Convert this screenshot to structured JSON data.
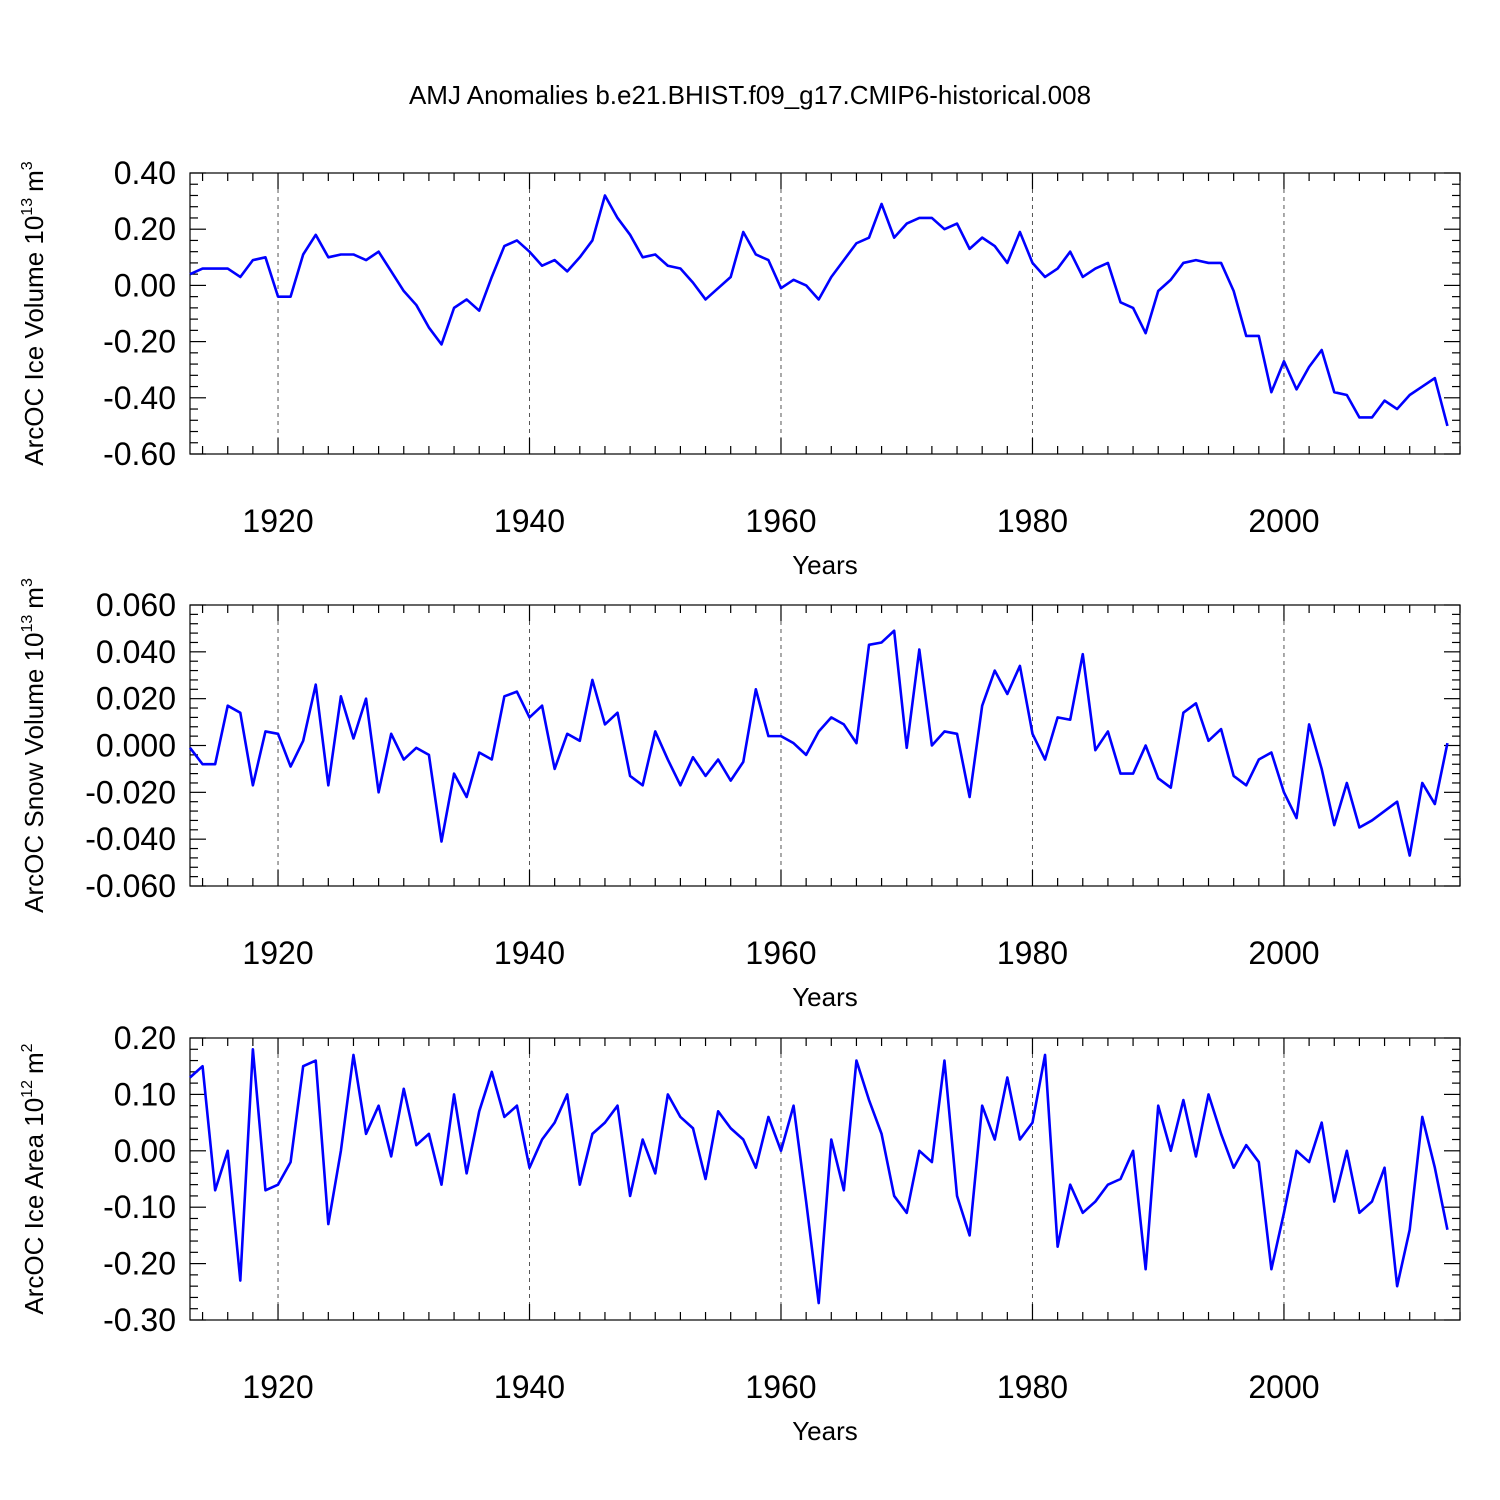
{
  "figure_title": "AMJ Anomalies b.e21.BHIST.f09_g17.CMIP6-historical.008",
  "chart_data": [
    {
      "type": "line",
      "ylabel": "ArcOC Ice Volume 10",
      "ylabel_exp": "13",
      "ylabel_unit": "m",
      "ylabel_unit_exp": "3",
      "xlabel": "Years",
      "xlim": [
        1913,
        2014
      ],
      "ylim": [
        -0.6,
        0.4
      ],
      "yticks": [
        -0.6,
        -0.4,
        -0.2,
        0.0,
        0.2,
        0.4
      ],
      "ytick_labels": [
        "-0.60",
        "-0.40",
        "-0.20",
        "0.00",
        "0.20",
        "0.40"
      ],
      "xticks": [
        1920,
        1940,
        1960,
        1980,
        2000
      ],
      "xtick_labels": [
        "1920",
        "1940",
        "1960",
        "1980",
        "2000"
      ],
      "grid": "vertical dashed at major x ticks",
      "series": [
        {
          "name": "ArcOC Ice Volume",
          "color": "#0000ff",
          "x_start": 1913,
          "values": [
            0.04,
            0.06,
            0.06,
            0.06,
            0.03,
            0.09,
            0.1,
            -0.04,
            -0.04,
            0.11,
            0.18,
            0.1,
            0.11,
            0.11,
            0.09,
            0.12,
            0.05,
            -0.02,
            -0.07,
            -0.15,
            -0.21,
            -0.08,
            -0.05,
            -0.09,
            0.03,
            0.14,
            0.16,
            0.12,
            0.07,
            0.09,
            0.05,
            0.1,
            0.16,
            0.32,
            0.24,
            0.18,
            0.1,
            0.11,
            0.07,
            0.06,
            0.01,
            -0.05,
            -0.01,
            0.03,
            0.19,
            0.11,
            0.09,
            -0.01,
            0.02,
            0.0,
            -0.05,
            0.03,
            0.09,
            0.15,
            0.17,
            0.29,
            0.17,
            0.22,
            0.24,
            0.24,
            0.2,
            0.22,
            0.13,
            0.17,
            0.14,
            0.08,
            0.19,
            0.08,
            0.03,
            0.06,
            0.12,
            0.03,
            0.06,
            0.08,
            -0.06,
            -0.08,
            -0.17,
            -0.02,
            0.02,
            0.08,
            0.09,
            0.08,
            0.08,
            -0.02,
            -0.18,
            -0.18,
            -0.38,
            -0.27,
            -0.37,
            -0.29,
            -0.23,
            -0.38,
            -0.39,
            -0.47,
            -0.47,
            -0.41,
            -0.44,
            -0.39,
            -0.36,
            -0.33,
            -0.5
          ]
        }
      ]
    },
    {
      "type": "line",
      "ylabel": "ArcOC Snow Volume 10",
      "ylabel_exp": "13",
      "ylabel_unit": "m",
      "ylabel_unit_exp": "3",
      "xlabel": "Years",
      "xlim": [
        1913,
        2014
      ],
      "ylim": [
        -0.06,
        0.06
      ],
      "yticks": [
        -0.06,
        -0.04,
        -0.02,
        0.0,
        0.02,
        0.04,
        0.06
      ],
      "ytick_labels": [
        "-0.060",
        "-0.040",
        "-0.020",
        "0.000",
        "0.020",
        "0.040",
        "0.060"
      ],
      "xticks": [
        1920,
        1940,
        1960,
        1980,
        2000
      ],
      "xtick_labels": [
        "1920",
        "1940",
        "1960",
        "1980",
        "2000"
      ],
      "grid": "vertical dashed at major x ticks",
      "series": [
        {
          "name": "ArcOC Snow Volume",
          "color": "#0000ff",
          "x_start": 1913,
          "values": [
            -0.001,
            -0.008,
            -0.008,
            0.017,
            0.014,
            -0.017,
            0.006,
            0.005,
            -0.009,
            0.002,
            0.026,
            -0.017,
            0.021,
            0.003,
            0.02,
            -0.02,
            0.005,
            -0.006,
            -0.001,
            -0.004,
            -0.041,
            -0.012,
            -0.022,
            -0.003,
            -0.006,
            0.021,
            0.023,
            0.012,
            0.017,
            -0.01,
            0.005,
            0.002,
            0.028,
            0.009,
            0.014,
            -0.013,
            -0.017,
            0.006,
            -0.006,
            -0.017,
            -0.005,
            -0.013,
            -0.006,
            -0.015,
            -0.007,
            0.024,
            0.004,
            0.004,
            0.001,
            -0.004,
            0.006,
            0.012,
            0.009,
            0.001,
            0.043,
            0.044,
            0.049,
            -0.001,
            0.041,
            0.0,
            0.006,
            0.005,
            -0.022,
            0.017,
            0.032,
            0.022,
            0.034,
            0.005,
            -0.006,
            0.012,
            0.011,
            0.039,
            -0.002,
            0.006,
            -0.012,
            -0.012,
            0.0,
            -0.014,
            -0.018,
            0.014,
            0.018,
            0.002,
            0.007,
            -0.013,
            -0.017,
            -0.006,
            -0.003,
            -0.02,
            -0.031,
            0.009,
            -0.01,
            -0.034,
            -0.016,
            -0.035,
            -0.032,
            -0.028,
            -0.024,
            -0.047,
            -0.016,
            -0.025,
            0.001
          ]
        }
      ]
    },
    {
      "type": "line",
      "ylabel": "ArcOC Ice Area 10",
      "ylabel_exp": "12",
      "ylabel_unit": "m",
      "ylabel_unit_exp": "2",
      "xlabel": "Years",
      "xlim": [
        1913,
        2014
      ],
      "ylim": [
        -0.3,
        0.2
      ],
      "yticks": [
        -0.3,
        -0.2,
        -0.1,
        0.0,
        0.1,
        0.2
      ],
      "ytick_labels": [
        "-0.30",
        "-0.20",
        "-0.10",
        "0.00",
        "0.10",
        "0.20"
      ],
      "xticks": [
        1920,
        1940,
        1960,
        1980,
        2000
      ],
      "xtick_labels": [
        "1920",
        "1940",
        "1960",
        "1980",
        "2000"
      ],
      "grid": "vertical dashed at major x ticks",
      "series": [
        {
          "name": "ArcOC Ice Area",
          "color": "#0000ff",
          "x_start": 1913,
          "values": [
            0.13,
            0.15,
            -0.07,
            0.0,
            -0.23,
            0.18,
            -0.07,
            -0.06,
            -0.02,
            0.15,
            0.16,
            -0.13,
            0.0,
            0.17,
            0.03,
            0.08,
            -0.01,
            0.11,
            0.01,
            0.03,
            -0.06,
            0.1,
            -0.04,
            0.07,
            0.14,
            0.06,
            0.08,
            -0.03,
            0.02,
            0.05,
            0.1,
            -0.06,
            0.03,
            0.05,
            0.08,
            -0.08,
            0.02,
            -0.04,
            0.1,
            0.06,
            0.04,
            -0.05,
            0.07,
            0.04,
            0.02,
            -0.03,
            0.06,
            0.0,
            0.08,
            -0.09,
            -0.27,
            0.02,
            -0.07,
            0.16,
            0.09,
            0.03,
            -0.08,
            -0.11,
            0.0,
            -0.02,
            0.16,
            -0.08,
            -0.15,
            0.08,
            0.02,
            0.13,
            0.02,
            0.05,
            0.17,
            -0.17,
            -0.06,
            -0.11,
            -0.09,
            -0.06,
            -0.05,
            0.0,
            -0.21,
            0.08,
            0.0,
            0.09,
            -0.01,
            0.1,
            0.03,
            -0.03,
            0.01,
            -0.02,
            -0.21,
            -0.11,
            0.0,
            -0.02,
            0.05,
            -0.09,
            0.0,
            -0.11,
            -0.09,
            -0.03,
            -0.24,
            -0.14,
            0.06,
            -0.03,
            -0.14
          ]
        }
      ]
    }
  ]
}
